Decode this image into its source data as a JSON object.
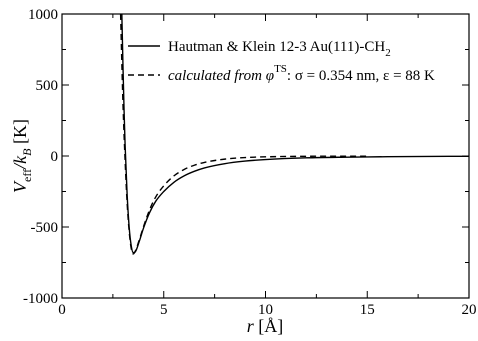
{
  "chart_data": {
    "type": "line",
    "title": "",
    "xlabel": {
      "var": "r",
      "unit": "[Å]"
    },
    "ylabel": {
      "var": "V",
      "sub1": "eff",
      "slash": "/k",
      "sub2": "B",
      "unit": "[K]"
    },
    "xlim": [
      0,
      20
    ],
    "ylim": [
      -1000,
      1000
    ],
    "x_ticks": [
      0,
      5,
      10,
      15,
      20
    ],
    "x_tick_labels": [
      "0",
      "5",
      "10",
      "15",
      "20"
    ],
    "y_ticks": [
      -1000,
      -500,
      0,
      500,
      1000
    ],
    "y_tick_labels": [
      "-1000",
      "-500",
      "0",
      "500",
      "1000"
    ],
    "grid": false,
    "legend_position": "top-right",
    "series": [
      {
        "name": "Hautman & Klein 12-3 Au(111)-CH2",
        "legend": {
          "text": "Hautman & Klein 12-3 Au(111)-CH",
          "sub": "2"
        },
        "style": "solid",
        "color": "#000000",
        "x": [
          2.94,
          3.0,
          3.05,
          3.1,
          3.2,
          3.3,
          3.4,
          3.5,
          3.6,
          3.8,
          4.0,
          4.3,
          4.6,
          5.0,
          5.5,
          6.0,
          6.5,
          7.0,
          8.0,
          9.0,
          10.0,
          12.0,
          14.0,
          16.0,
          18.0,
          20.0
        ],
        "y": [
          1000,
          610,
          320,
          80,
          -270,
          -500,
          -630,
          -680,
          -675,
          -600,
          -510,
          -400,
          -320,
          -250,
          -185,
          -140,
          -108,
          -84,
          -54,
          -36,
          -25,
          -13,
          -8,
          -5,
          -3,
          -2
        ]
      },
      {
        "name": "calculated from φTS: σ = 0.354 nm, ε = 88 K",
        "legend": {
          "text": "calculated from φ",
          "sup": "TS",
          "rest": ": σ = 0.354 nm, ε = 88 K"
        },
        "style": "dashed",
        "color": "#000000",
        "x": [
          2.88,
          2.95,
          3.0,
          3.1,
          3.2,
          3.3,
          3.4,
          3.5,
          3.6,
          3.8,
          4.0,
          4.3,
          4.6,
          5.0,
          5.5,
          6.0,
          6.5,
          7.0,
          8.0,
          9.0,
          10.0,
          12.0,
          14.0,
          15.0
        ],
        "y": [
          1000,
          600,
          350,
          -30,
          -330,
          -530,
          -650,
          -690,
          -670,
          -590,
          -500,
          -380,
          -290,
          -210,
          -140,
          -95,
          -65,
          -45,
          -22,
          -11,
          -6,
          -2,
          -1,
          -1
        ]
      }
    ]
  }
}
